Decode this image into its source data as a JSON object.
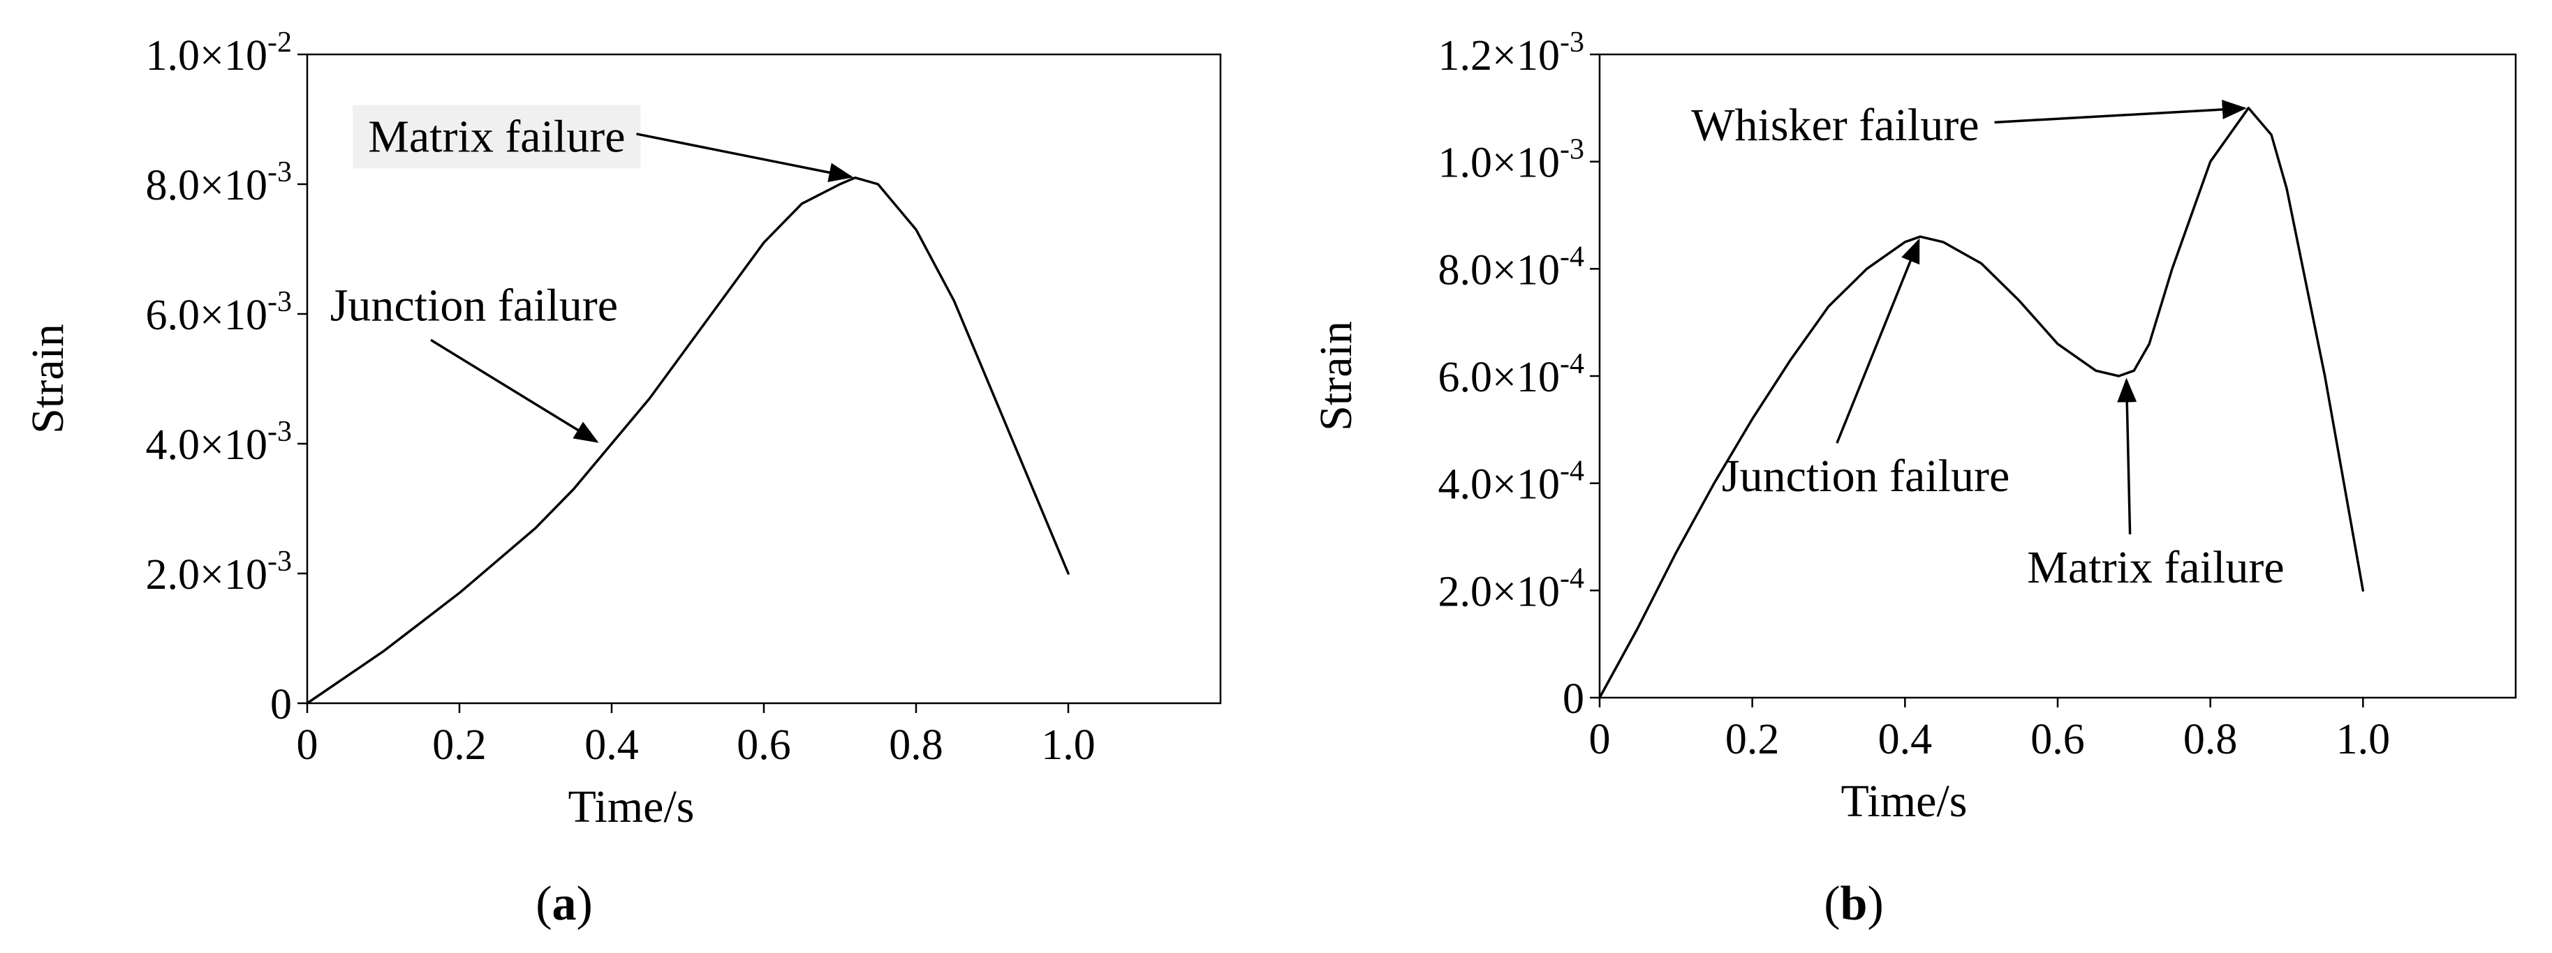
{
  "chart_data": [
    {
      "id": "a",
      "type": "line",
      "panel_label": "a",
      "xlabel": "Time/s",
      "ylabel": "Strain",
      "xlim": [
        0,
        1.2
      ],
      "ylim": [
        0,
        0.01
      ],
      "x_ticks": [
        {
          "v": 0,
          "label": "0"
        },
        {
          "v": 0.2,
          "label": "0.2"
        },
        {
          "v": 0.4,
          "label": "0.4"
        },
        {
          "v": 0.6,
          "label": "0.6"
        },
        {
          "v": 0.8,
          "label": "0.8"
        },
        {
          "v": 1.0,
          "label": "1.0"
        }
      ],
      "y_ticks": [
        {
          "v": 0,
          "mant": "0",
          "exp": ""
        },
        {
          "v": 0.002,
          "mant": "2.0×10",
          "exp": "-3"
        },
        {
          "v": 0.004,
          "mant": "4.0×10",
          "exp": "-3"
        },
        {
          "v": 0.006,
          "mant": "6.0×10",
          "exp": "-3"
        },
        {
          "v": 0.008,
          "mant": "8.0×10",
          "exp": "-3"
        },
        {
          "v": 0.01,
          "mant": "1.0×10",
          "exp": "-2"
        }
      ],
      "series": [
        {
          "x": [
            0,
            0.05,
            0.1,
            0.15,
            0.2,
            0.25,
            0.3,
            0.35,
            0.4,
            0.45,
            0.5,
            0.55,
            0.6,
            0.65,
            0.7,
            0.72,
            0.75,
            0.8,
            0.85,
            0.9,
            0.95,
            1.0
          ],
          "y": [
            0,
            0.0004,
            0.0008,
            0.00125,
            0.0017,
            0.0022,
            0.0027,
            0.0033,
            0.004,
            0.0047,
            0.0055,
            0.0063,
            0.0071,
            0.0077,
            0.008,
            0.0081,
            0.008,
            0.0073,
            0.0062,
            0.0048,
            0.0034,
            0.002
          ]
        }
      ],
      "annotations": [
        {
          "text": "Matrix failure",
          "x": 0.72,
          "y": 0.0081,
          "tx": 0.08,
          "ty": 0.0085
        },
        {
          "text": "Junction failure",
          "x": 0.385,
          "y": 0.004,
          "tx": 0.03,
          "ty": 0.0059
        }
      ]
    },
    {
      "id": "b",
      "type": "line",
      "panel_label": "b",
      "xlabel": "Time/s",
      "ylabel": "Strain",
      "xlim": [
        0,
        1.2
      ],
      "ylim": [
        0,
        0.0012
      ],
      "x_ticks": [
        {
          "v": 0,
          "label": "0"
        },
        {
          "v": 0.2,
          "label": "0.2"
        },
        {
          "v": 0.4,
          "label": "0.4"
        },
        {
          "v": 0.6,
          "label": "0.6"
        },
        {
          "v": 0.8,
          "label": "0.8"
        },
        {
          "v": 1.0,
          "label": "1.0"
        }
      ],
      "y_ticks": [
        {
          "v": 0,
          "mant": "0",
          "exp": ""
        },
        {
          "v": 0.0002,
          "mant": "2.0×10",
          "exp": "-4"
        },
        {
          "v": 0.0004,
          "mant": "4.0×10",
          "exp": "-4"
        },
        {
          "v": 0.0006,
          "mant": "6.0×10",
          "exp": "-4"
        },
        {
          "v": 0.0008,
          "mant": "8.0×10",
          "exp": "-4"
        },
        {
          "v": 0.001,
          "mant": "1.0×10",
          "exp": "-3"
        },
        {
          "v": 0.0012,
          "mant": "1.2×10",
          "exp": "-3"
        }
      ],
      "series": [
        {
          "x": [
            0,
            0.05,
            0.1,
            0.15,
            0.2,
            0.25,
            0.3,
            0.35,
            0.4,
            0.42,
            0.45,
            0.5,
            0.55,
            0.6,
            0.65,
            0.68,
            0.7,
            0.72,
            0.75,
            0.8,
            0.85,
            0.88,
            0.9,
            0.95,
            1.0
          ],
          "y": [
            0,
            0.00013,
            0.00027,
            0.0004,
            0.00052,
            0.00063,
            0.00073,
            0.0008,
            0.00085,
            0.00086,
            0.00085,
            0.00081,
            0.00074,
            0.00066,
            0.00061,
            0.0006,
            0.00061,
            0.00066,
            0.0008,
            0.001,
            0.0011,
            0.00105,
            0.00095,
            0.0006,
            0.0002
          ]
        }
      ],
      "annotations": [
        {
          "text": "Whisker failure",
          "x": 0.85,
          "y": 0.0011,
          "tx": 0.12,
          "ty": 0.00104
        },
        {
          "text": "Junction failure",
          "x": 0.42,
          "y": 0.00086,
          "tx": 0.16,
          "ty": 0.000385
        },
        {
          "text": "Matrix failure",
          "x": 0.69,
          "y": 0.0006,
          "tx": 0.56,
          "ty": 0.000215
        }
      ]
    }
  ]
}
